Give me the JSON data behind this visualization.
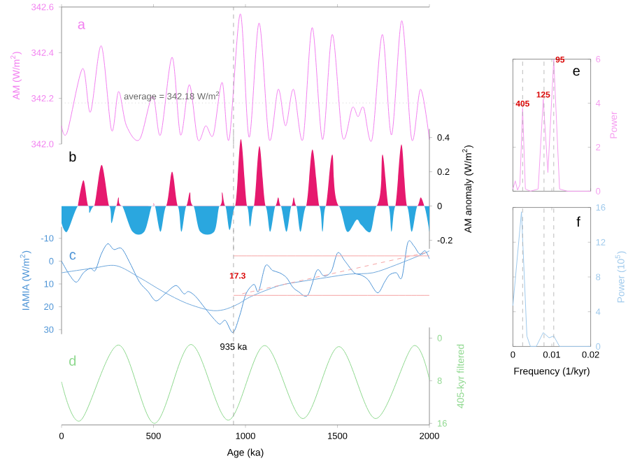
{
  "chart_data": [
    {
      "type": "line",
      "ylabel": "AM (W/m$^{2}$)",
      "xlim": [
        0,
        2000
      ],
      "xticks": [
        0,
        500,
        1000,
        1500,
        2000
      ],
      "ylim": [
        342.0,
        342.6
      ],
      "yticks": [
        {
          "value": 342.0,
          "label": "342.0"
        },
        342.2,
        342.4,
        342.6
      ],
      "tick_labels": "y",
      "series": [
        {
          "color": "#f27ff0",
          "x": [
            0,
            30,
            114,
            157,
            216,
            272,
            310,
            353,
            424,
            495,
            538,
            601,
            647,
            695,
            741,
            784,
            825,
            873,
            911,
            972,
            1020,
            1074,
            1129,
            1178,
            1218,
            1261,
            1312,
            1363,
            1419,
            1472,
            1528,
            1581,
            1612,
            1642,
            1688,
            1744,
            1794,
            1850,
            1904,
            1952,
            2000
          ],
          "values": [
            342.08,
            342.05,
            342.33,
            342.14,
            342.43,
            342.06,
            342.23,
            342.08,
            342.02,
            342.21,
            342.04,
            342.38,
            342.04,
            342.26,
            342.02,
            342.08,
            342.04,
            342.27,
            342.02,
            342.57,
            342.03,
            342.53,
            342.02,
            342.24,
            342.08,
            342.24,
            342.02,
            342.51,
            342.02,
            342.48,
            342.03,
            342.16,
            342.12,
            342.16,
            342.02,
            342.48,
            342.04,
            342.54,
            342.02,
            342.24,
            342.02
          ]
        }
      ],
      "ref_lines": [
        {
          "axis": "y",
          "value": 342.18,
          "label": "average = 342.18 W/m$^{2}$",
          "color": "#bbbbbb",
          "line_style": "dotted"
        },
        {
          "axis": "x",
          "value": 935,
          "color": "#999999",
          "line_style": "dashed"
        }
      ],
      "annotations": [
        "a"
      ]
    },
    {
      "type": "area",
      "ylabel": "AM anomaly (W/m$^{2}$)",
      "xlim": [
        0,
        2000
      ],
      "ylim": [
        -0.25,
        0.45
      ],
      "yticks": [
        -0.2,
        0,
        0.2,
        0.4
      ],
      "tick_labels": "y",
      "series": [
        {
          "color": "#e6196e",
          "x": [
            89,
            119,
            145,
            178,
            218,
            259,
            297,
            310,
            330,
            490,
            499,
            508,
            569,
            601,
            632,
            678,
            698,
            718,
            858,
            873,
            891,
            944,
            975,
            1008,
            1046,
            1076,
            1109,
            1162,
            1178,
            1193,
            1249,
            1262,
            1277,
            1330,
            1364,
            1401,
            1437,
            1472,
            1508,
            1713,
            1745,
            1777,
            1815,
            1848,
            1878,
            1934,
            1953,
            1972
          ],
          "values": [
            0,
            0.15,
            0,
            0,
            0.24,
            0,
            0,
            0.05,
            0,
            0,
            0.02,
            0,
            0,
            0.2,
            0,
            0,
            0.08,
            0,
            0,
            0.08,
            0,
            0,
            0.39,
            0,
            0,
            0.35,
            0,
            0,
            0.05,
            0,
            0,
            0.05,
            0,
            0,
            0.33,
            0,
            0,
            0.3,
            0,
            0,
            0.3,
            0,
            0,
            0.36,
            0,
            0,
            0.05,
            0
          ]
        },
        {
          "color": "#2aa7df",
          "x": [
            0,
            30,
            89,
            145,
            152,
            178,
            259,
            272,
            297,
            330,
            386,
            450,
            490,
            508,
            538,
            569,
            632,
            652,
            678,
            718,
            754,
            830,
            858,
            891,
            914,
            944,
            1008,
            1025,
            1046,
            1109,
            1134,
            1162,
            1193,
            1223,
            1249,
            1277,
            1299,
            1330,
            1401,
            1419,
            1437,
            1508,
            1553,
            1604,
            1629,
            1680,
            1713,
            1777,
            1794,
            1815,
            1878,
            1904,
            1934,
            1972,
            2000
          ],
          "values": [
            -0.1,
            -0.15,
            0,
            0,
            -0.04,
            0,
            0,
            -0.1,
            0,
            0,
            -0.15,
            -0.15,
            0,
            0,
            -0.15,
            0,
            0,
            -0.15,
            0,
            0,
            -0.15,
            -0.15,
            0,
            0,
            -0.14,
            0,
            0,
            -0.12,
            0,
            0,
            -0.15,
            0,
            0,
            -0.15,
            0,
            0,
            -0.15,
            0,
            0,
            -0.15,
            0,
            0,
            -0.15,
            -0.08,
            -0.11,
            -0.15,
            0,
            0,
            -0.15,
            0,
            0,
            -0.15,
            0,
            0,
            -0.15
          ]
        }
      ],
      "ref_lines": [
        {
          "axis": "x",
          "value": 935,
          "color": "#999999",
          "line_style": "dashed"
        }
      ],
      "annotations": [
        "b"
      ]
    },
    {
      "type": "line",
      "ylabel": "IAMIA (W/m$^{2}$)",
      "xlim": [
        0,
        2000
      ],
      "ylim": [
        32,
        -15
      ],
      "yticks": [
        -10,
        0,
        10,
        20,
        30
      ],
      "tick_labels": "y",
      "series": [
        {
          "color": "#4d94d6",
          "x": [
            0,
            43,
            81,
            119,
            157,
            183,
            216,
            251,
            284,
            327,
            373,
            424,
            470,
            513,
            563,
            622,
            665,
            690,
            728,
            779,
            825,
            860,
            891,
            932,
            970,
            1003,
            1046,
            1071,
            1109,
            1147,
            1185,
            1223,
            1256,
            1287,
            1338,
            1388,
            1419,
            1439,
            1469,
            1502,
            1541,
            1591,
            1629,
            1667,
            1718,
            1756,
            1782,
            1820,
            1850,
            1883,
            1916,
            1947,
            1977,
            2000
          ],
          "values": [
            0,
            6,
            9.2,
            5.1,
            3.1,
            4.1,
            -3.1,
            -7.6,
            -5.1,
            -5.5,
            1,
            9.2,
            13.3,
            17.4,
            14.3,
            10.7,
            14.3,
            13.3,
            15.4,
            20.5,
            25,
            27.6,
            26,
            31.3,
            23.5,
            14.3,
            10.2,
            13.3,
            2,
            4.1,
            5.1,
            7.2,
            11.3,
            13.3,
            15,
            4.1,
            6.1,
            6.5,
            4.1,
            -3.7,
            0,
            5.1,
            6.1,
            8.2,
            13.9,
            9.2,
            6.1,
            5.1,
            7.2,
            -8.2,
            -6.6,
            -3.1,
            -4.5,
            -1
          ]
        },
        {
          "color": "#6fa8dc",
          "x": [
            0,
            170,
            297,
            424,
            551,
            678,
            805,
            881,
            957,
            1033,
            1185,
            1312,
            1439,
            1566,
            1693,
            1820,
            1947,
            2000
          ],
          "values": [
            5.1,
            3.1,
            2,
            7.2,
            13.3,
            18.4,
            21.5,
            21.3,
            18.9,
            15.4,
            10.7,
            8.8,
            7.2,
            5.7,
            5.1,
            1.6,
            -2.5,
            -4.5
          ]
        },
        {
          "color": "#f5a3a3",
          "x": [
            935,
            2000
          ],
          "values": [
            -2.3,
            -2.3
          ]
        },
        {
          "color": "#f5a3a3",
          "x": [
            935,
            2000
          ],
          "values": [
            15,
            15
          ]
        },
        {
          "color": "#f5a3a3",
          "x": [
            982,
            1997
          ],
          "values": [
            14.3,
            -4
          ],
          "line_style": "dashed"
        }
      ],
      "ref_lines": [
        {
          "axis": "x",
          "value": 935,
          "color": "#999999",
          "line_style": "dashed"
        }
      ],
      "annotations": [
        "c",
        {
          "text": "17.3",
          "x": 957,
          "y": 6.4
        }
      ]
    },
    {
      "type": "line",
      "ylabel": "405-kyr filtered",
      "xlabel": "Age (ka)",
      "xlim": [
        0,
        2000
      ],
      "xticks": [
        0,
        500,
        1000,
        1500,
        2000
      ],
      "ylim": [
        16.3,
        -2
      ],
      "yticks": [
        0,
        8,
        16
      ],
      "series": [
        {
          "color": "#8ed88e",
          "x": [
            0,
            102,
            310,
            505,
            703,
            906,
            1104,
            1312,
            1508,
            1708,
            1911,
            2000
          ],
          "values": [
            8.2,
            15.5,
            1.3,
            16,
            1.2,
            15.4,
            1.4,
            15.1,
            1.6,
            15.1,
            1.5,
            7.8
          ]
        }
      ],
      "ref_lines": [
        {
          "axis": "x",
          "value": 935,
          "label": "935 ka",
          "color": "#999999",
          "line_style": "dashed"
        }
      ],
      "annotations": [
        "d"
      ]
    },
    {
      "type": "line",
      "ylabel": "Power",
      "xlim": [
        0,
        0.02
      ],
      "xticks": [
        0,
        0.01,
        0.02
      ],
      "ylim": [
        0,
        6
      ],
      "yticks": [
        0,
        2,
        4,
        6
      ],
      "tick_labels": "y",
      "series": [
        {
          "color": "#f59df0",
          "x": [
            0,
            0.0006,
            0.0012,
            0.0018,
            0.0025,
            0.0032,
            0.0045,
            0.0065,
            0.0078,
            0.009,
            0.0105,
            0.012,
            0.014,
            0.02
          ],
          "values": [
            0.1,
            0.47,
            0.05,
            0.3,
            3.77,
            0.1,
            0,
            0.1,
            4.18,
            0.85,
            5.98,
            0.1,
            0,
            0
          ]
        }
      ],
      "ref_lines": [
        {
          "axis": "x",
          "value": 0.0025,
          "color": "#aaaaaa",
          "line_style": "dashed"
        },
        {
          "axis": "x",
          "value": 0.008,
          "color": "#aaaaaa",
          "line_style": "dashed"
        },
        {
          "axis": "x",
          "value": 0.0105,
          "color": "#aaaaaa",
          "line_style": "dashed"
        }
      ],
      "annotations": [
        "e",
        {
          "text": "405",
          "x": 0.0025,
          "y": 3.77
        },
        {
          "text": "125",
          "x": 0.0078,
          "y": 4.18
        },
        {
          "text": "95",
          "x": 0.0105,
          "y": 5.98
        }
      ]
    },
    {
      "type": "line",
      "ylabel": "Power (10$^{5}$)",
      "xlabel": "Frequency (1/kyr)",
      "xlim": [
        0,
        0.02
      ],
      "xticks": [
        0,
        0.01,
        0.02
      ],
      "ylim": [
        0,
        16
      ],
      "yticks": [
        0,
        4,
        8,
        12,
        16
      ],
      "series": [
        {
          "color": "#9ec9ec",
          "x": [
            0,
            0.0022,
            0.0036,
            0.0045,
            0.006,
            0.0078,
            0.0093,
            0.0105,
            0.012,
            0.02
          ],
          "values": [
            4.7,
            15.5,
            1.2,
            0,
            0,
            1.6,
            1,
            1.2,
            0,
            0
          ]
        }
      ],
      "ref_lines": [
        {
          "axis": "x",
          "value": 0.0025,
          "color": "#aaaaaa",
          "line_style": "dashed"
        },
        {
          "axis": "x",
          "value": 0.008,
          "color": "#aaaaaa",
          "line_style": "dashed"
        },
        {
          "axis": "x",
          "value": 0.0105,
          "color": "#aaaaaa",
          "line_style": "dashed"
        }
      ],
      "annotations": [
        "f"
      ]
    }
  ]
}
